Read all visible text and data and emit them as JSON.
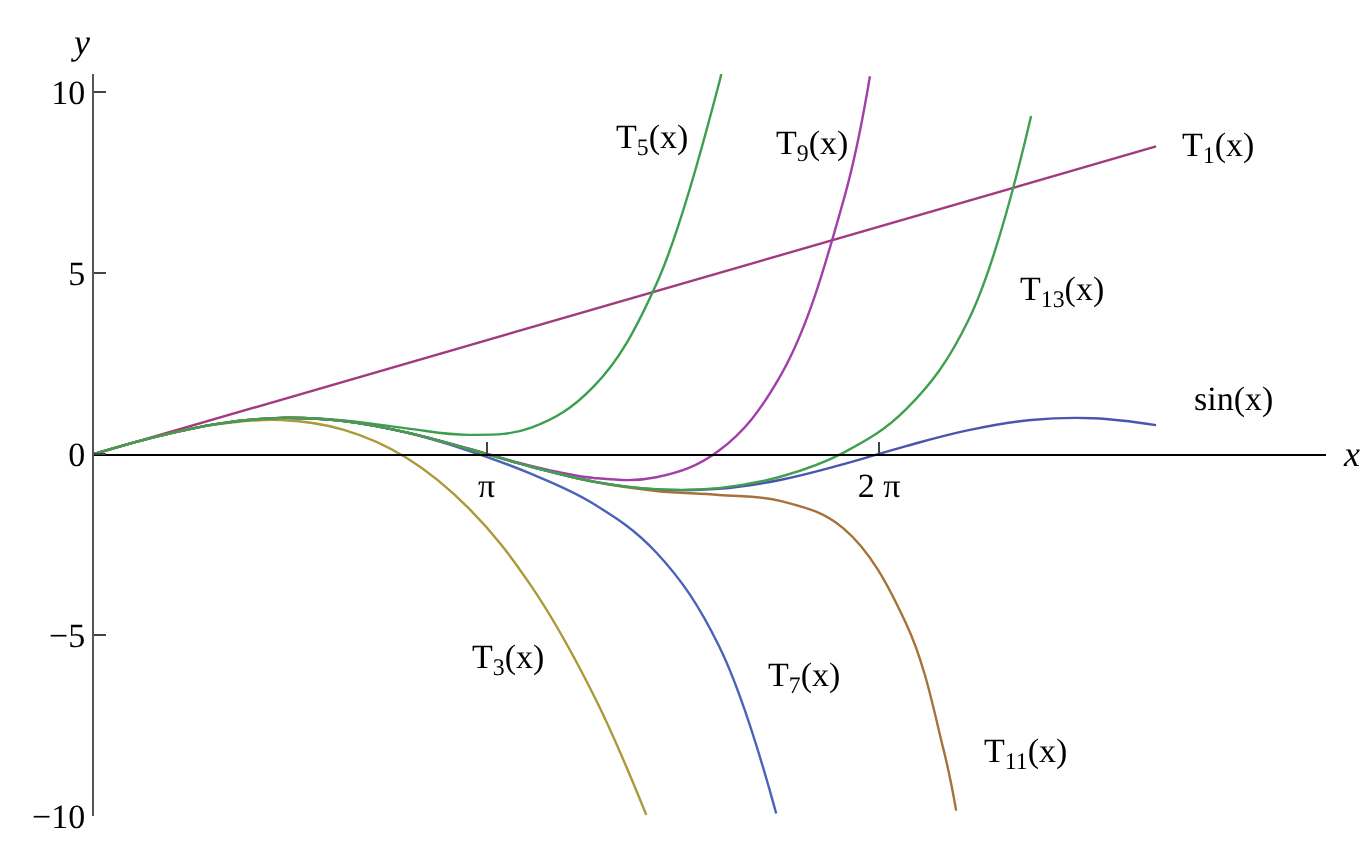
{
  "chart_data": {
    "type": "line",
    "xlabel": "x",
    "ylabel": "y",
    "xlim": [
      0,
      9.86
    ],
    "ylim": [
      -10,
      10.5
    ],
    "xticks": [
      {
        "value": 3.1416,
        "label": "π"
      },
      {
        "value": 6.2832,
        "label": "2 π"
      }
    ],
    "yticks": [
      -10,
      -5,
      0,
      5,
      10
    ],
    "legend": false,
    "series": [
      {
        "name": "T$_{1}$(x)",
        "color": "#a23a7e",
        "x": [
          0,
          8.5
        ],
        "values": [
          0,
          8.5
        ]
      },
      {
        "name": "sin(x)",
        "color": "#4a55b0",
        "x": [
          1.5,
          2,
          2.5,
          3,
          3.5,
          4,
          4.5,
          5,
          5.5,
          6,
          6.5,
          7,
          7.5,
          8,
          8.5
        ],
        "values": [
          1.0,
          0.91,
          0.6,
          0.14,
          -0.35,
          -0.76,
          -0.98,
          -0.96,
          -0.71,
          -0.28,
          0.22,
          0.66,
          0.94,
          0.99,
          0.8
        ]
      },
      {
        "name": "T$_{3}$(x)",
        "color": "#a99a3a",
        "x": [
          0,
          0.5,
          1,
          1.5,
          2,
          2.5,
          3,
          3.5,
          4,
          4.42
        ],
        "values": [
          0,
          0.48,
          0.83,
          0.94,
          0.67,
          -0.1,
          -1.5,
          -3.65,
          -6.67,
          -9.97
        ]
      },
      {
        "name": "T$_{5}$(x)",
        "color": "#3c9f4f",
        "x": [
          0,
          0.5,
          1,
          1.5,
          2,
          2.5,
          3,
          3.5,
          4,
          4.5,
          5,
          5.02
        ],
        "values": [
          0,
          0.48,
          0.84,
          1.0,
          0.93,
          0.71,
          0.53,
          0.73,
          1.87,
          4.69,
          10.21,
          10.5
        ]
      },
      {
        "name": "T$_{7}$(x)",
        "color": "#4a62b8",
        "x": [
          1.5,
          2,
          2.5,
          3,
          3.5,
          4,
          4.5,
          5,
          5.46
        ],
        "values": [
          1.0,
          0.91,
          0.59,
          0.09,
          -0.55,
          -1.38,
          -2.72,
          -5.29,
          -9.93
        ]
      },
      {
        "name": "T$_{9}$(x)",
        "color": "#a040a8",
        "x": [
          0,
          0.5,
          1,
          1.5,
          2,
          2.5,
          3,
          3.5,
          4,
          4.5,
          5,
          5.5,
          6,
          6.21
        ],
        "values": [
          0,
          0.48,
          0.84,
          1.0,
          0.91,
          0.6,
          0.15,
          -0.33,
          -0.66,
          -0.64,
          0.09,
          2.2,
          7.03,
          10.44
        ]
      },
      {
        "name": "T$_{11}$(x)",
        "color": "#a5723a",
        "x": [
          0,
          0.5,
          1,
          1.5,
          2,
          2.5,
          3,
          3.5,
          4,
          4.5,
          5,
          5.5,
          6,
          6.5,
          6.8,
          6.9
        ],
        "values": [
          0,
          0.48,
          0.84,
          1.0,
          0.91,
          0.6,
          0.14,
          -0.35,
          -0.77,
          -1.02,
          -1.13,
          -1.3,
          -2.06,
          -4.69,
          -8.18,
          -9.85
        ]
      },
      {
        "name": "T$_{13}$(x)",
        "color": "#3fa050",
        "x": [
          0,
          0.5,
          1,
          1.5,
          2,
          2.5,
          3,
          3.5,
          4,
          4.5,
          5,
          5.5,
          6,
          6.5,
          7,
          7.5
        ],
        "values": [
          0,
          0.48,
          0.84,
          1.0,
          0.91,
          0.6,
          0.14,
          -0.35,
          -0.76,
          -0.97,
          -0.94,
          -0.62,
          0.04,
          1.24,
          3.71,
          9.34
        ]
      }
    ]
  }
}
